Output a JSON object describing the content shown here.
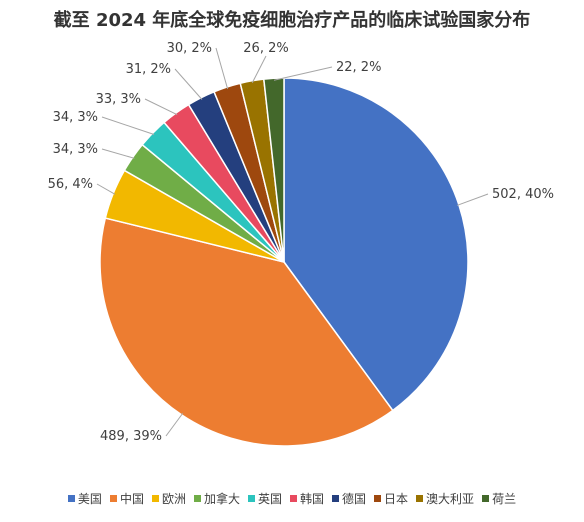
{
  "chart_data": {
    "type": "pie",
    "title": "截至 2024 年底全球免疫细胞治疗产品的临床试验国家分布",
    "categories": [
      "美国",
      "中国",
      "欧洲",
      "加拿大",
      "英国",
      "韩国",
      "德国",
      "日本",
      "澳大利亚",
      "荷兰"
    ],
    "values": [
      502,
      489,
      56,
      34,
      34,
      33,
      31,
      30,
      26,
      22
    ],
    "percent_labels": [
      "40%",
      "39%",
      "4%",
      "3%",
      "3%",
      "3%",
      "2%",
      "2%",
      "2%",
      "2%"
    ],
    "data_labels": [
      "502, 40%",
      "489, 39%",
      "56, 4%",
      "34, 3%",
      "34, 3%",
      "33, 3%",
      "31, 2%",
      "30, 2%",
      "26, 2%",
      "22, 2%"
    ],
    "colors": [
      "#4472C4",
      "#ED7D31",
      "#F2B800",
      "#70AD47",
      "#2CC4BE",
      "#E84A5F",
      "#243F7E",
      "#9E480E",
      "#997300",
      "#43682B"
    ],
    "legend_position": "bottom",
    "start_angle_deg": 0,
    "direction": "clockwise"
  }
}
